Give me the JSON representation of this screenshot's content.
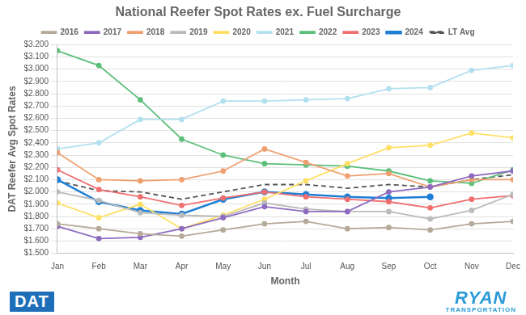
{
  "chart_data": {
    "type": "line",
    "title": "National Reefer Spot Rates ex. Fuel Surcharge",
    "x_label": "Month",
    "y_label": "DAT Reefer Avg Spot Rates",
    "annotations": [
      "DAT",
      "RYAN",
      "TRANSPORTATION"
    ],
    "categories": [
      "Jan",
      "Feb",
      "Mar",
      "Apr",
      "May",
      "Jun",
      "Jul",
      "Aug",
      "Sep",
      "Oct",
      "Nov",
      "Dec"
    ],
    "series": [
      {
        "name": "2016",
        "color": "#b5aa99",
        "marker": "circle",
        "line_style": "solid",
        "values": [
          1.74,
          1.7,
          1.66,
          1.64,
          1.69,
          1.74,
          1.76,
          1.7,
          1.71,
          1.69,
          1.74,
          1.76
        ]
      },
      {
        "name": "2017",
        "color": "#8e6bbf",
        "marker": "circle",
        "line_style": "solid",
        "values": [
          1.72,
          1.62,
          1.63,
          1.7,
          1.79,
          1.88,
          1.84,
          1.84,
          2.0,
          2.04,
          2.13,
          2.17
        ]
      },
      {
        "name": "2018",
        "color": "#f0a070",
        "marker": "circle",
        "line_style": "solid",
        "values": [
          2.32,
          2.1,
          2.09,
          2.1,
          2.17,
          2.35,
          2.24,
          2.13,
          2.15,
          2.04,
          2.1,
          2.1
        ]
      },
      {
        "name": "2019",
        "color": "#bbbbbb",
        "marker": "circle",
        "line_style": "solid",
        "values": [
          2.0,
          1.93,
          1.83,
          1.81,
          1.8,
          1.91,
          1.86,
          1.84,
          1.84,
          1.78,
          1.85,
          1.98
        ]
      },
      {
        "name": "2020",
        "color": "#ffe066",
        "marker": "circle",
        "line_style": "solid",
        "values": [
          1.91,
          1.79,
          1.9,
          1.7,
          1.81,
          1.94,
          2.09,
          2.23,
          2.36,
          2.38,
          2.48,
          2.44
        ]
      },
      {
        "name": "2021",
        "color": "#b3e0ef",
        "marker": "circle",
        "line_style": "solid",
        "values": [
          2.35,
          2.4,
          2.59,
          2.59,
          2.74,
          2.74,
          2.75,
          2.76,
          2.84,
          2.85,
          2.99,
          3.03
        ]
      },
      {
        "name": "2022",
        "color": "#5cbf7a",
        "marker": "circle",
        "line_style": "solid",
        "values": [
          3.15,
          3.03,
          2.75,
          2.43,
          2.3,
          2.23,
          2.22,
          2.21,
          2.17,
          2.09,
          2.07,
          2.18
        ]
      },
      {
        "name": "2023",
        "color": "#f07070",
        "marker": "circle",
        "line_style": "solid",
        "values": [
          2.18,
          2.02,
          1.96,
          1.89,
          1.95,
          2.0,
          1.96,
          1.94,
          1.92,
          1.87,
          1.94,
          1.97
        ]
      },
      {
        "name": "2024",
        "color": "#1f7fd6",
        "marker": "circle",
        "line_style": "solid",
        "values": [
          2.1,
          1.92,
          1.85,
          1.82,
          1.94,
          2.0,
          1.98,
          1.96,
          1.95,
          1.96,
          null,
          null
        ]
      },
      {
        "name": "LT Avg",
        "color": "#555555",
        "marker": "none",
        "line_style": "dashed",
        "values": [
          2.09,
          2.01,
          2.0,
          1.94,
          2.0,
          2.06,
          2.06,
          2.03,
          2.06,
          2.04,
          2.1,
          2.14
        ]
      }
    ],
    "ylim": [
      1.5,
      3.2
    ],
    "yticks": [
      {
        "value": 1.5,
        "label": "$1.500"
      },
      {
        "value": 1.6,
        "label": "$1.600"
      },
      {
        "value": 1.7,
        "label": "$1.700"
      },
      {
        "value": 1.8,
        "label": "$1.800"
      },
      {
        "value": 1.9,
        "label": "$1.900"
      },
      {
        "value": 2.0,
        "label": "$2.000"
      },
      {
        "value": 2.1,
        "label": "$2.100"
      },
      {
        "value": 2.2,
        "label": "$2.200"
      },
      {
        "value": 2.3,
        "label": "$2.300"
      },
      {
        "value": 2.4,
        "label": "$2.400"
      },
      {
        "value": 2.5,
        "label": "$2.500"
      },
      {
        "value": 2.6,
        "label": "$2.600"
      },
      {
        "value": 2.7,
        "label": "$2.700"
      },
      {
        "value": 2.8,
        "label": "$2.800"
      },
      {
        "value": 2.9,
        "label": "$2.900"
      },
      {
        "value": 3.0,
        "label": "$3.000"
      },
      {
        "value": 3.1,
        "label": "$3.100"
      },
      {
        "value": 3.2,
        "label": "$3.200"
      }
    ],
    "grid": true,
    "legend": "top"
  }
}
